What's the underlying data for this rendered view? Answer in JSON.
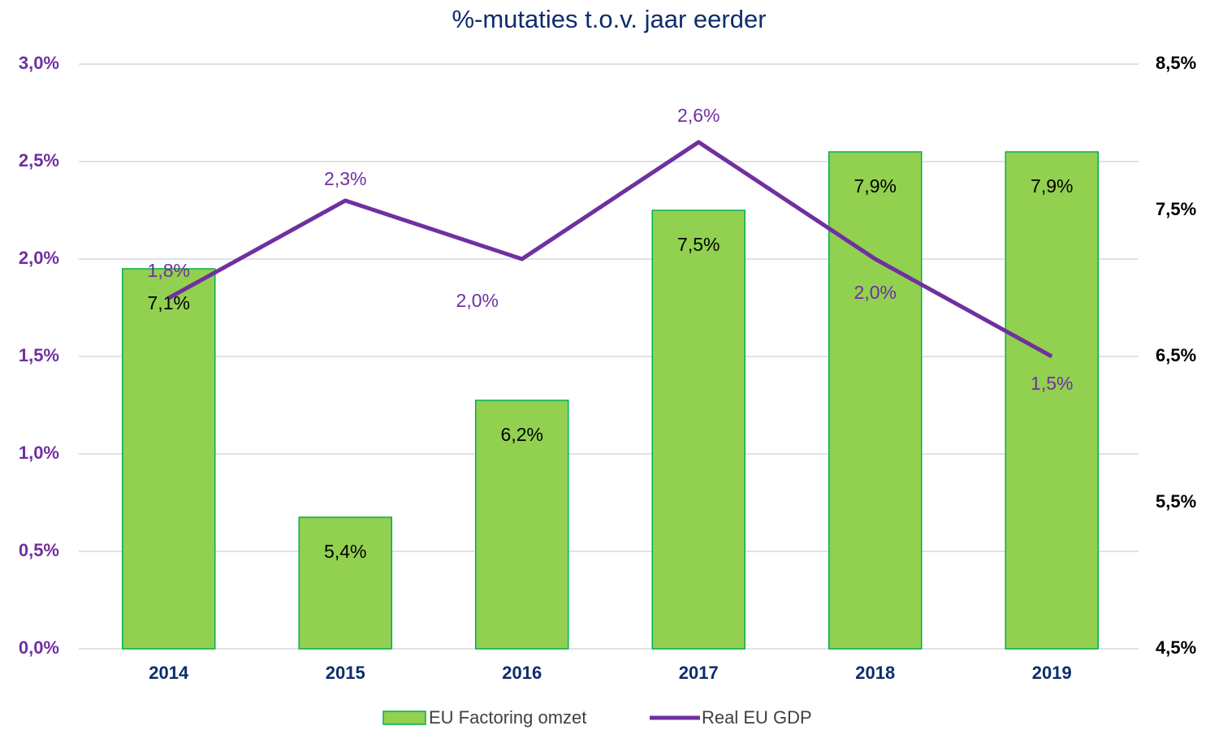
{
  "chart_data": {
    "type": "bar+line",
    "title": "%-mutaties t.o.v. jaar eerder",
    "categories": [
      "2014",
      "2015",
      "2016",
      "2017",
      "2018",
      "2019"
    ],
    "series": [
      {
        "name": "EU Factoring omzet",
        "type": "bar",
        "axis": "y2",
        "color": "#92d050",
        "edgecolor": "#00b050",
        "values": [
          7.1,
          5.4,
          6.2,
          7.5,
          7.9,
          7.9
        ],
        "value_labels": [
          "7,1%",
          "5,4%",
          "6,2%",
          "7,5%",
          "7,9%",
          "7,9%"
        ]
      },
      {
        "name": "Real EU GDP",
        "type": "line",
        "axis": "y",
        "color": "#7030a0",
        "values": [
          1.8,
          2.3,
          2.0,
          2.6,
          2.0,
          1.5
        ],
        "value_labels": [
          "1,8%",
          "2,3%",
          "2,0%",
          "2,6%",
          "2,0%",
          "1,5%"
        ]
      }
    ],
    "ylim": [
      0,
      3
    ],
    "yticks": [
      {
        "value": 0,
        "label": "0,0%"
      },
      {
        "value": 0.5,
        "label": "0,5%"
      },
      {
        "value": 1,
        "label": "1,0%"
      },
      {
        "value": 1.5,
        "label": "1,5%"
      },
      {
        "value": 2,
        "label": "2,0%"
      },
      {
        "value": 2.5,
        "label": "2,5%"
      },
      {
        "value": 3,
        "label": "3,0%"
      }
    ],
    "y2lim": [
      4.5,
      8.5
    ],
    "y2ticks": [
      {
        "value": 4.5,
        "label": "4,5%"
      },
      {
        "value": 5.5,
        "label": "5,5%"
      },
      {
        "value": 6.5,
        "label": "6,5%"
      },
      {
        "value": 7.5,
        "label": "7,5%"
      },
      {
        "value": 8.5,
        "label": "8,5%"
      }
    ],
    "grid": true,
    "legend": "bottom"
  }
}
